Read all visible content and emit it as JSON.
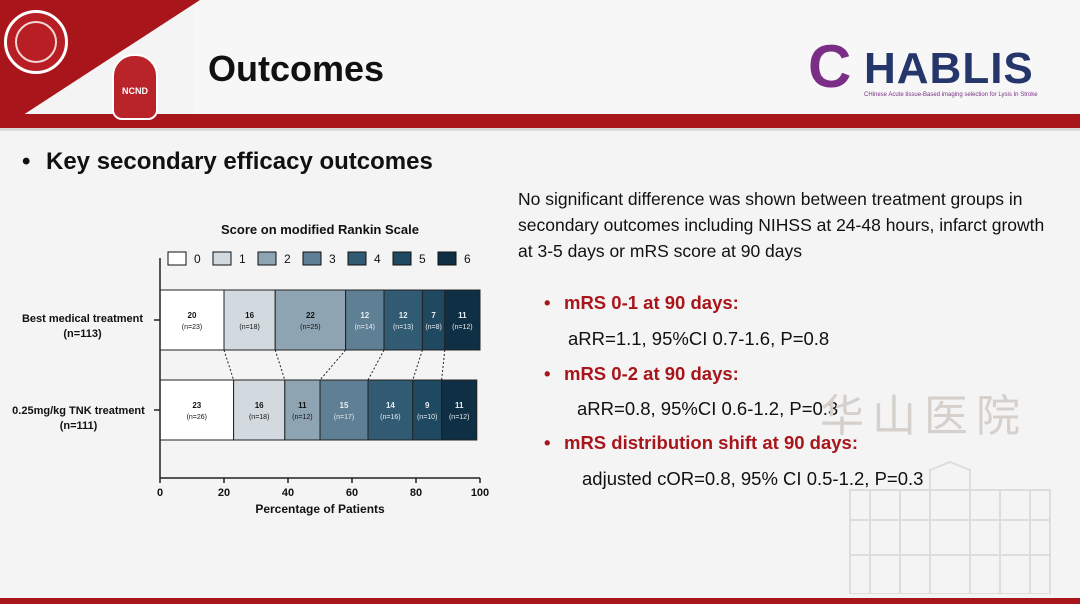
{
  "header": {
    "title": "Outcomes"
  },
  "logos": {
    "ncnd": "NCND",
    "chablis_first": "C",
    "chablis_rest": "HABLIS",
    "chablis_subtitle": "CHinese Acute tissue-Based imaging selection for Lysis In Stroke"
  },
  "section": {
    "heading": "Key secondary efficacy outcomes"
  },
  "summary": "No significant difference was shown between treatment groups in secondary outcomes including NIHSS at 24-48 hours, infarct growth at 3-5 days or mRS score at 90 days",
  "outcomes": [
    {
      "label": "mRS 0-1 at 90 days:",
      "value": "aRR=1.1, 95%CI 0.7-1.6, P=0.8"
    },
    {
      "label": "mRS 0-2 at 90 days:",
      "value": "aRR=0.8, 95%CI 0.6-1.2, P=0.3"
    },
    {
      "label": "mRS distribution shift at 90 days:",
      "value": "adjusted cOR=0.8, 95% CI 0.5-1.2, P=0.3"
    }
  ],
  "watermark": "华山医院",
  "chart_data": {
    "type": "bar",
    "stacked": true,
    "orientation": "horizontal",
    "title": "Score on modified Rankin Scale",
    "xlabel": "Percentage of Patients",
    "ylabel": "",
    "xlim": [
      0,
      100
    ],
    "xticks": [
      0,
      20,
      40,
      60,
      80,
      100
    ],
    "legend_position": "top",
    "legend": [
      "0",
      "1",
      "2",
      "3",
      "4",
      "5",
      "6"
    ],
    "colors": [
      "#ffffff",
      "#d3dadf",
      "#8fa4b2",
      "#5f7f94",
      "#315a73",
      "#1f4861",
      "#0f2f44"
    ],
    "categories": [
      {
        "name": "Best medical treatment",
        "n": "(n=113)"
      },
      {
        "name": "0.25mg/kg TNK treatment",
        "n": "(n=111)"
      }
    ],
    "rows": [
      {
        "values": [
          20,
          16,
          22,
          12,
          12,
          7,
          11
        ],
        "labels": [
          "20",
          "16",
          "22",
          "12",
          "12",
          "7",
          "11"
        ],
        "counts": [
          "(n=23)",
          "(n=18)",
          "(n=25)",
          "(n=14)",
          "(n=13)",
          "(n=8)",
          "(n=12)"
        ]
      },
      {
        "values": [
          23,
          16,
          11,
          15,
          14,
          9,
          11
        ],
        "labels": [
          "23",
          "16",
          "11",
          "15",
          "14",
          "9",
          "11"
        ],
        "counts": [
          "(n=26)",
          "(n=18)",
          "(n=12)",
          "(n=17)",
          "(n=16)",
          "(n=10)",
          "(n=12)"
        ]
      }
    ]
  }
}
